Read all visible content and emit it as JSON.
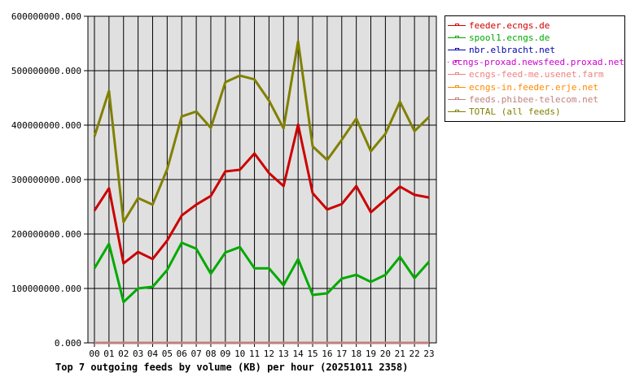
{
  "chart_data": {
    "type": "line",
    "title": "Top 7 outgoing feeds by volume (KB) per hour (20251011 2358)",
    "xlabel": "",
    "ylabel": "",
    "ylim": [
      0,
      600000000
    ],
    "yticks": [
      "0.000",
      "100000000.000",
      "200000000.000",
      "300000000.000",
      "400000000.000",
      "500000000.000",
      "600000000.000"
    ],
    "grid": true,
    "legend_position": "right",
    "categories": [
      "00",
      "01",
      "02",
      "03",
      "04",
      "05",
      "06",
      "07",
      "08",
      "09",
      "10",
      "11",
      "12",
      "13",
      "14",
      "15",
      "16",
      "17",
      "18",
      "19",
      "20",
      "21",
      "22",
      "23"
    ],
    "series": [
      {
        "name": "feeder.ecngs.de",
        "color": "#cc0000",
        "values": [
          243000000,
          284000000,
          146000000,
          167000000,
          154000000,
          188000000,
          234000000,
          254000000,
          270000000,
          315000000,
          318000000,
          348000000,
          312000000,
          288000000,
          401000000,
          275000000,
          245000000,
          255000000,
          288000000,
          240000000,
          263000000,
          287000000,
          272000000,
          267000000
        ]
      },
      {
        "name": "spool1.ecngs.de",
        "color": "#00aa00",
        "values": [
          137000000,
          182000000,
          75000000,
          100000000,
          103000000,
          134000000,
          184000000,
          173000000,
          127000000,
          166000000,
          176000000,
          137000000,
          137000000,
          106000000,
          154000000,
          88000000,
          91000000,
          118000000,
          125000000,
          112000000,
          125000000,
          158000000,
          119000000,
          149000000
        ]
      },
      {
        "name": "nbr.elbracht.net",
        "color": "#0000aa",
        "values": [
          0,
          0,
          0,
          0,
          0,
          0,
          0,
          0,
          0,
          0,
          0,
          0,
          0,
          0,
          0,
          0,
          0,
          0,
          0,
          0,
          0,
          0,
          0,
          0
        ]
      },
      {
        "name": "ecngs-proxad.newsfeed.proxad.net",
        "color": "#cc00cc",
        "values": [
          0,
          0,
          0,
          0,
          0,
          0,
          0,
          0,
          0,
          0,
          0,
          0,
          0,
          0,
          0,
          0,
          0,
          0,
          0,
          0,
          0,
          0,
          0,
          0
        ]
      },
      {
        "name": "ecngs-feed-me.usenet.farm",
        "color": "#f08080",
        "values": [
          0,
          0,
          0,
          0,
          0,
          0,
          0,
          0,
          0,
          0,
          0,
          0,
          0,
          0,
          0,
          0,
          0,
          0,
          0,
          0,
          0,
          0,
          0,
          0
        ]
      },
      {
        "name": "ecngs-in.feeder.erje.net",
        "color": "#ff8800",
        "values": [
          0,
          0,
          0,
          0,
          0,
          0,
          0,
          0,
          0,
          0,
          0,
          0,
          0,
          0,
          0,
          0,
          0,
          0,
          0,
          0,
          0,
          0,
          0,
          0
        ]
      },
      {
        "name": "feeds.phibee-telecom.net",
        "color": "#c08080",
        "values": [
          0,
          0,
          0,
          0,
          0,
          0,
          0,
          0,
          0,
          0,
          0,
          0,
          0,
          0,
          0,
          0,
          0,
          0,
          0,
          0,
          0,
          0,
          0,
          0
        ]
      },
      {
        "name": "TOTAL (all feeds)",
        "color": "#808000",
        "values": [
          379000000,
          463000000,
          222000000,
          266000000,
          254000000,
          319000000,
          416000000,
          425000000,
          395000000,
          479000000,
          491000000,
          484000000,
          445000000,
          394000000,
          554000000,
          361000000,
          336000000,
          373000000,
          412000000,
          352000000,
          384000000,
          443000000,
          389000000,
          415000000
        ]
      }
    ]
  }
}
